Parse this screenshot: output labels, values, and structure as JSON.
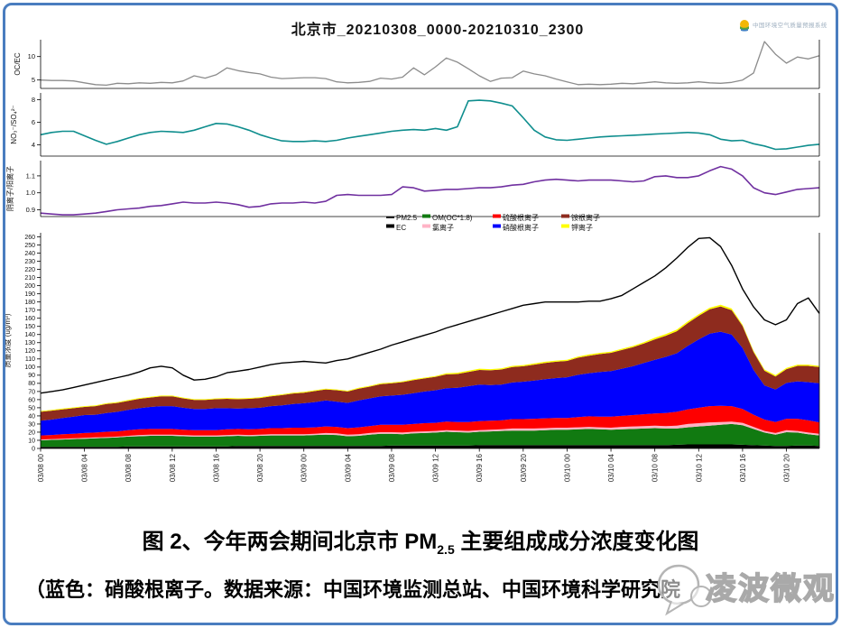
{
  "frame": {
    "border_color": "#4a7dbf"
  },
  "header": {
    "title": "北京市_20210308_0000-20210310_2300",
    "logo": {
      "icon": "sun-leaf-logo",
      "text": "中国环境空气质量预报系统"
    }
  },
  "caption": {
    "line1_pre": "图 2、今年两会期间北京市 PM",
    "line1_sub": "2.5",
    "line1_post": " 主要组成成分浓度变化图",
    "line2": "（蓝色：硝酸根离子。数据来源：中国环境监测总站、中国环境科学研究院"
  },
  "watermark": {
    "text": "凌波微观",
    "icon": "wechat-bubble-icon"
  },
  "chart_data": {
    "type": "area",
    "title": "北京市_20210308_0000-20210310_2300",
    "x": {
      "count": 72,
      "tick_every": 4,
      "tick_labels": [
        "03/08 00",
        "03/08 04",
        "03/08 08",
        "03/08 12",
        "03/08 16",
        "03/08 20",
        "03/09 00",
        "03/09 04",
        "03/09 08",
        "03/09 12",
        "03/09 16",
        "03/09 20",
        "03/10 00",
        "03/10 04",
        "03/10 08",
        "03/10 12",
        "03/10 16",
        "03/10 20"
      ]
    },
    "panels": [
      {
        "id": "oc-ec",
        "ylabel": "OC/EC",
        "ylim": [
          3.2,
          13.6
        ],
        "yticks": [
          {
            "v": 5,
            "label": "5"
          },
          {
            "v": 10,
            "label": "10"
          }
        ],
        "tick_font": 7.5,
        "ylabel_x": 22,
        "series": [
          {
            "key": "oc-ec-ratio",
            "name": "OC/EC",
            "color": "#8c8c8c",
            "width": 1.3,
            "values": [
              5.0,
              4.9,
              4.9,
              4.8,
              4.4,
              4.0,
              3.9,
              4.3,
              4.2,
              4.4,
              4.3,
              4.5,
              4.4,
              4.8,
              5.9,
              5.4,
              6.1,
              7.6,
              7.0,
              6.6,
              6.3,
              5.6,
              5.3,
              5.4,
              5.5,
              5.5,
              5.3,
              4.6,
              4.4,
              4.5,
              4.7,
              5.4,
              5.2,
              5.6,
              7.6,
              6.1,
              7.8,
              9.7,
              8.8,
              7.4,
              5.9,
              4.7,
              5.4,
              5.5,
              6.9,
              6.3,
              5.9,
              5.2,
              4.6,
              4.0,
              4.1,
              4.0,
              4.1,
              4.3,
              4.2,
              4.4,
              4.6,
              4.4,
              4.3,
              4.4,
              4.6,
              4.4,
              4.3,
              4.5,
              5.0,
              6.5,
              13.2,
              10.5,
              8.6,
              9.9,
              9.5,
              10.2
            ]
          }
        ]
      },
      {
        "id": "no3-so4",
        "ylabel": "NO₃⁻/SO₄²⁻",
        "ylim": [
          3.0,
          8.6
        ],
        "yticks": [
          {
            "v": 4,
            "label": "4"
          },
          {
            "v": 6,
            "label": "6"
          },
          {
            "v": 8,
            "label": "8"
          }
        ],
        "tick_font": 7.5,
        "ylabel_x": 18,
        "series": [
          {
            "key": "no3-so4-ratio",
            "name": "NO3-/SO42-",
            "color": "#0f8e8e",
            "width": 1.6,
            "values": [
              4.9,
              5.1,
              5.2,
              5.2,
              4.8,
              4.4,
              4.05,
              4.3,
              4.6,
              4.9,
              5.1,
              5.2,
              5.15,
              5.1,
              5.3,
              5.6,
              5.9,
              5.85,
              5.6,
              5.3,
              4.9,
              4.6,
              4.35,
              4.3,
              4.3,
              4.35,
              4.3,
              4.4,
              4.6,
              4.75,
              4.9,
              5.05,
              5.2,
              5.3,
              5.35,
              5.3,
              5.45,
              5.3,
              5.6,
              7.9,
              7.95,
              7.9,
              7.7,
              7.45,
              6.4,
              5.3,
              4.7,
              4.45,
              4.4,
              4.5,
              4.6,
              4.7,
              4.75,
              4.8,
              4.85,
              4.9,
              4.95,
              5.0,
              5.05,
              5.1,
              5.05,
              4.9,
              4.5,
              4.35,
              4.4,
              4.1,
              3.9,
              3.6,
              3.65,
              3.8,
              3.95,
              4.05
            ]
          }
        ]
      },
      {
        "id": "anion-cation",
        "ylabel": "阴离子/阳离子",
        "ylim": [
          0.86,
          1.19
        ],
        "yticks": [
          {
            "v": 0.9,
            "label": "0.9"
          },
          {
            "v": 1.0,
            "label": "1.0"
          },
          {
            "v": 1.1,
            "label": "1.1"
          }
        ],
        "tick_font": 7.5,
        "ylabel_x": 14,
        "series": [
          {
            "key": "anion-cation-ratio",
            "name": "阴离子/阳离子",
            "color": "#7030a0",
            "width": 1.6,
            "values": [
              0.88,
              0.875,
              0.87,
              0.87,
              0.875,
              0.88,
              0.89,
              0.9,
              0.905,
              0.91,
              0.92,
              0.925,
              0.935,
              0.945,
              0.94,
              0.94,
              0.945,
              0.94,
              0.93,
              0.915,
              0.92,
              0.935,
              0.94,
              0.94,
              0.945,
              0.94,
              0.95,
              0.985,
              0.99,
              0.985,
              0.985,
              0.985,
              0.99,
              1.035,
              1.03,
              1.01,
              1.015,
              1.02,
              1.02,
              1.025,
              1.03,
              1.03,
              1.035,
              1.045,
              1.05,
              1.065,
              1.075,
              1.08,
              1.075,
              1.07,
              1.075,
              1.075,
              1.075,
              1.07,
              1.065,
              1.07,
              1.095,
              1.1,
              1.09,
              1.09,
              1.1,
              1.13,
              1.155,
              1.14,
              1.1,
              1.03,
              1.0,
              0.99,
              1.005,
              1.02,
              1.025,
              1.03
            ]
          }
        ]
      },
      {
        "id": "mass",
        "ylabel": "质量浓度 (ug/m³)",
        "ylim": [
          0,
          265
        ],
        "ytick_range": {
          "from": 0,
          "to": 260,
          "step": 10
        },
        "tick_font": 7,
        "ylabel_x": 11,
        "xaxis": true,
        "stack": [
          {
            "key": "ec",
            "name": "EC",
            "color": "#000000",
            "values": [
              2,
              2,
              2,
              2,
              2,
              2,
              2,
              2,
              2.5,
              2.5,
              2.5,
              2.5,
              2.5,
              2.5,
              2.5,
              2.5,
              2.5,
              2.5,
              3,
              3,
              3,
              3,
              3,
              3,
              3,
              3,
              3,
              3,
              3,
              3,
              3,
              3,
              3.5,
              3.5,
              3.5,
              3.5,
              3.5,
              3.5,
              3.5,
              3.5,
              4,
              4,
              4,
              4,
              4,
              4,
              4,
              4,
              4,
              4,
              4,
              4,
              4,
              4,
              4,
              4,
              4,
              4,
              4.5,
              5,
              5,
              5,
              5,
              5,
              4.5,
              4,
              3.5,
              3,
              3,
              3.5,
              3.5,
              3
            ]
          },
          {
            "key": "om",
            "name": "OM(OC*1.8)",
            "color": "#117a11",
            "values": [
              8,
              8.5,
              9,
              9.5,
              10,
              10.5,
              11,
              11.5,
              12,
              12.5,
              13,
              13,
              13,
              12.5,
              12,
              12,
              12,
              12.5,
              12.5,
              12,
              12.5,
              13,
              13,
              13,
              13,
              13.5,
              14,
              13.5,
              12,
              12.5,
              14,
              15,
              14.5,
              14,
              15,
              15.5,
              16,
              17,
              16.5,
              16,
              16.5,
              17,
              17.5,
              18,
              18,
              18,
              18.5,
              19,
              19,
              19.5,
              20,
              19.5,
              19,
              19.5,
              20,
              20.5,
              21,
              20.5,
              20,
              21,
              22,
              23,
              24,
              25,
              24,
              20,
              16,
              14,
              17,
              16,
              14,
              13
            ]
          },
          {
            "key": "cl",
            "name": "氯离子",
            "color": "#ffb3c6",
            "values": [
              1,
              1,
              1,
              1,
              1,
              1,
              1,
              1,
              1,
              1.5,
              1.5,
              1.5,
              1.5,
              1.5,
              1.5,
              1.5,
              1.5,
              1.5,
              1.5,
              1.5,
              1.5,
              1.5,
              1.5,
              1.5,
              1.5,
              1.5,
              2,
              2,
              2,
              2,
              2,
              2,
              2,
              2,
              2,
              2,
              2,
              2,
              2,
              2,
              2,
              2,
              2,
              2.5,
              2.5,
              2.5,
              2.5,
              2.5,
              2.5,
              2.5,
              2.5,
              2.5,
              2.5,
              3,
              3,
              3,
              3,
              3,
              3.5,
              4,
              4,
              4,
              3.5,
              3,
              3,
              2.5,
              2,
              2,
              2.5,
              2,
              2,
              2
            ]
          },
          {
            "key": "so4",
            "name": "硫酸根离子",
            "color": "#fe0000",
            "values": [
              5,
              5,
              5.5,
              5.5,
              6,
              6,
              6.5,
              6.5,
              7,
              7,
              7,
              7,
              7,
              6.5,
              6.5,
              6.5,
              6.5,
              7,
              7,
              7,
              7,
              7.5,
              7.5,
              8,
              8,
              8,
              8,
              8,
              8,
              8.5,
              8.5,
              9,
              9,
              9.5,
              9.5,
              10,
              10,
              10.5,
              10.5,
              11,
              11,
              11,
              11,
              11.5,
              11.5,
              12,
              12,
              12,
              12,
              12.5,
              13,
              13,
              13.5,
              13.5,
              14,
              14.5,
              15,
              16,
              17,
              18,
              19,
              20,
              20,
              19,
              17,
              15,
              14,
              13.5,
              14,
              15,
              15,
              14
            ]
          },
          {
            "key": "no3",
            "name": "硝酸根离子",
            "color": "#0000fe",
            "values": [
              18,
              19,
              20,
              21,
              22,
              22,
              23,
              24,
              25,
              26,
              27,
              28,
              28,
              27,
              26,
              26,
              27,
              26,
              25,
              26,
              26,
              27,
              28,
              29,
              30,
              31,
              32,
              31,
              31,
              33,
              34,
              35,
              36,
              37,
              38,
              39,
              40,
              41,
              42,
              44,
              45,
              44,
              44,
              45,
              46,
              47,
              48,
              49,
              50,
              52,
              53,
              55,
              56,
              58,
              60,
              63,
              66,
              69,
              72,
              78,
              84,
              89,
              91,
              88,
              75,
              55,
              42,
              40,
              44,
              46,
              47,
              48
            ]
          },
          {
            "key": "nh4",
            "name": "铵根离子",
            "color": "#8e2b1e",
            "values": [
              11,
              11,
              10.5,
              10.5,
              10,
              10.5,
              11,
              11,
              11,
              11.5,
              11.5,
              12,
              12,
              11.5,
              11,
              11,
              11,
              11.5,
              11.5,
              11.5,
              12,
              12,
              12.5,
              13,
              13,
              13.5,
              13.5,
              14,
              14,
              14.5,
              14.5,
              15,
              15,
              15.5,
              16,
              16,
              16.5,
              17,
              17,
              17.5,
              18,
              18,
              18.5,
              19,
              19,
              19.5,
              20,
              20,
              20,
              21,
              21.5,
              22,
              22.5,
              23,
              23.5,
              24,
              25,
              26,
              27,
              28,
              29,
              30,
              31,
              30,
              27,
              22,
              18,
              16,
              17,
              19,
              20,
              20
            ]
          },
          {
            "key": "k",
            "name": "钾离子",
            "color": "#ffff00",
            "values": [
              1,
              1,
              1,
              1,
              1,
              1,
              1,
              1,
              1,
              1,
              1,
              1,
              1,
              1,
              1,
              1,
              1,
              1,
              1,
              1,
              1,
              1,
              1,
              1,
              1,
              1,
              1,
              1,
              1,
              1,
              1,
              1,
              1,
              1,
              1,
              1,
              1,
              1.5,
              1.5,
              1.5,
              1.5,
              1.5,
              1.5,
              1.5,
              1.5,
              1.5,
              1.5,
              1.5,
              1.5,
              1.5,
              1.5,
              1.5,
              1.5,
              1.5,
              1.5,
              1.5,
              2,
              2,
              2,
              2,
              2,
              2,
              2,
              2,
              1.5,
              1.5,
              1.5,
              1.5,
              1.5,
              1.5,
              1.5,
              1.5
            ]
          }
        ],
        "line": {
          "key": "pm25",
          "name": "PM2.5",
          "color": "#000000",
          "values": [
            68,
            70,
            72,
            75,
            78,
            81,
            84,
            87,
            90,
            94,
            99,
            101,
            99,
            90,
            84,
            85,
            88,
            93,
            95,
            97,
            100,
            103,
            105,
            106,
            107,
            106,
            105,
            108,
            110,
            114,
            118,
            122,
            127,
            131,
            135,
            139,
            143,
            148,
            152,
            156,
            160,
            164,
            168,
            172,
            176,
            178,
            180,
            180,
            180,
            180,
            181,
            181,
            184,
            188,
            196,
            204,
            212,
            222,
            234,
            247,
            258,
            259,
            248,
            225,
            196,
            174,
            158,
            152,
            158,
            178,
            185,
            166
          ]
        }
      }
    ],
    "legend": {
      "rows": [
        [
          {
            "label": "PM2.5",
            "color": "#000000",
            "swatch": "line"
          },
          {
            "label": "OM(OC*1.8)",
            "color": "#117a11",
            "swatch": "box"
          },
          {
            "label": "硫酸根离子",
            "color": "#fe0000",
            "swatch": "box"
          },
          {
            "label": "铵根离子",
            "color": "#8e2b1e",
            "swatch": "box"
          }
        ],
        [
          {
            "label": "EC",
            "color": "#000000",
            "swatch": "box"
          },
          {
            "label": "氯离子",
            "color": "#ffb3c6",
            "swatch": "box"
          },
          {
            "label": "硝酸根离子",
            "color": "#0000fe",
            "swatch": "box"
          },
          {
            "label": "钾离子",
            "color": "#ffff00",
            "swatch": "box"
          }
        ]
      ]
    }
  }
}
